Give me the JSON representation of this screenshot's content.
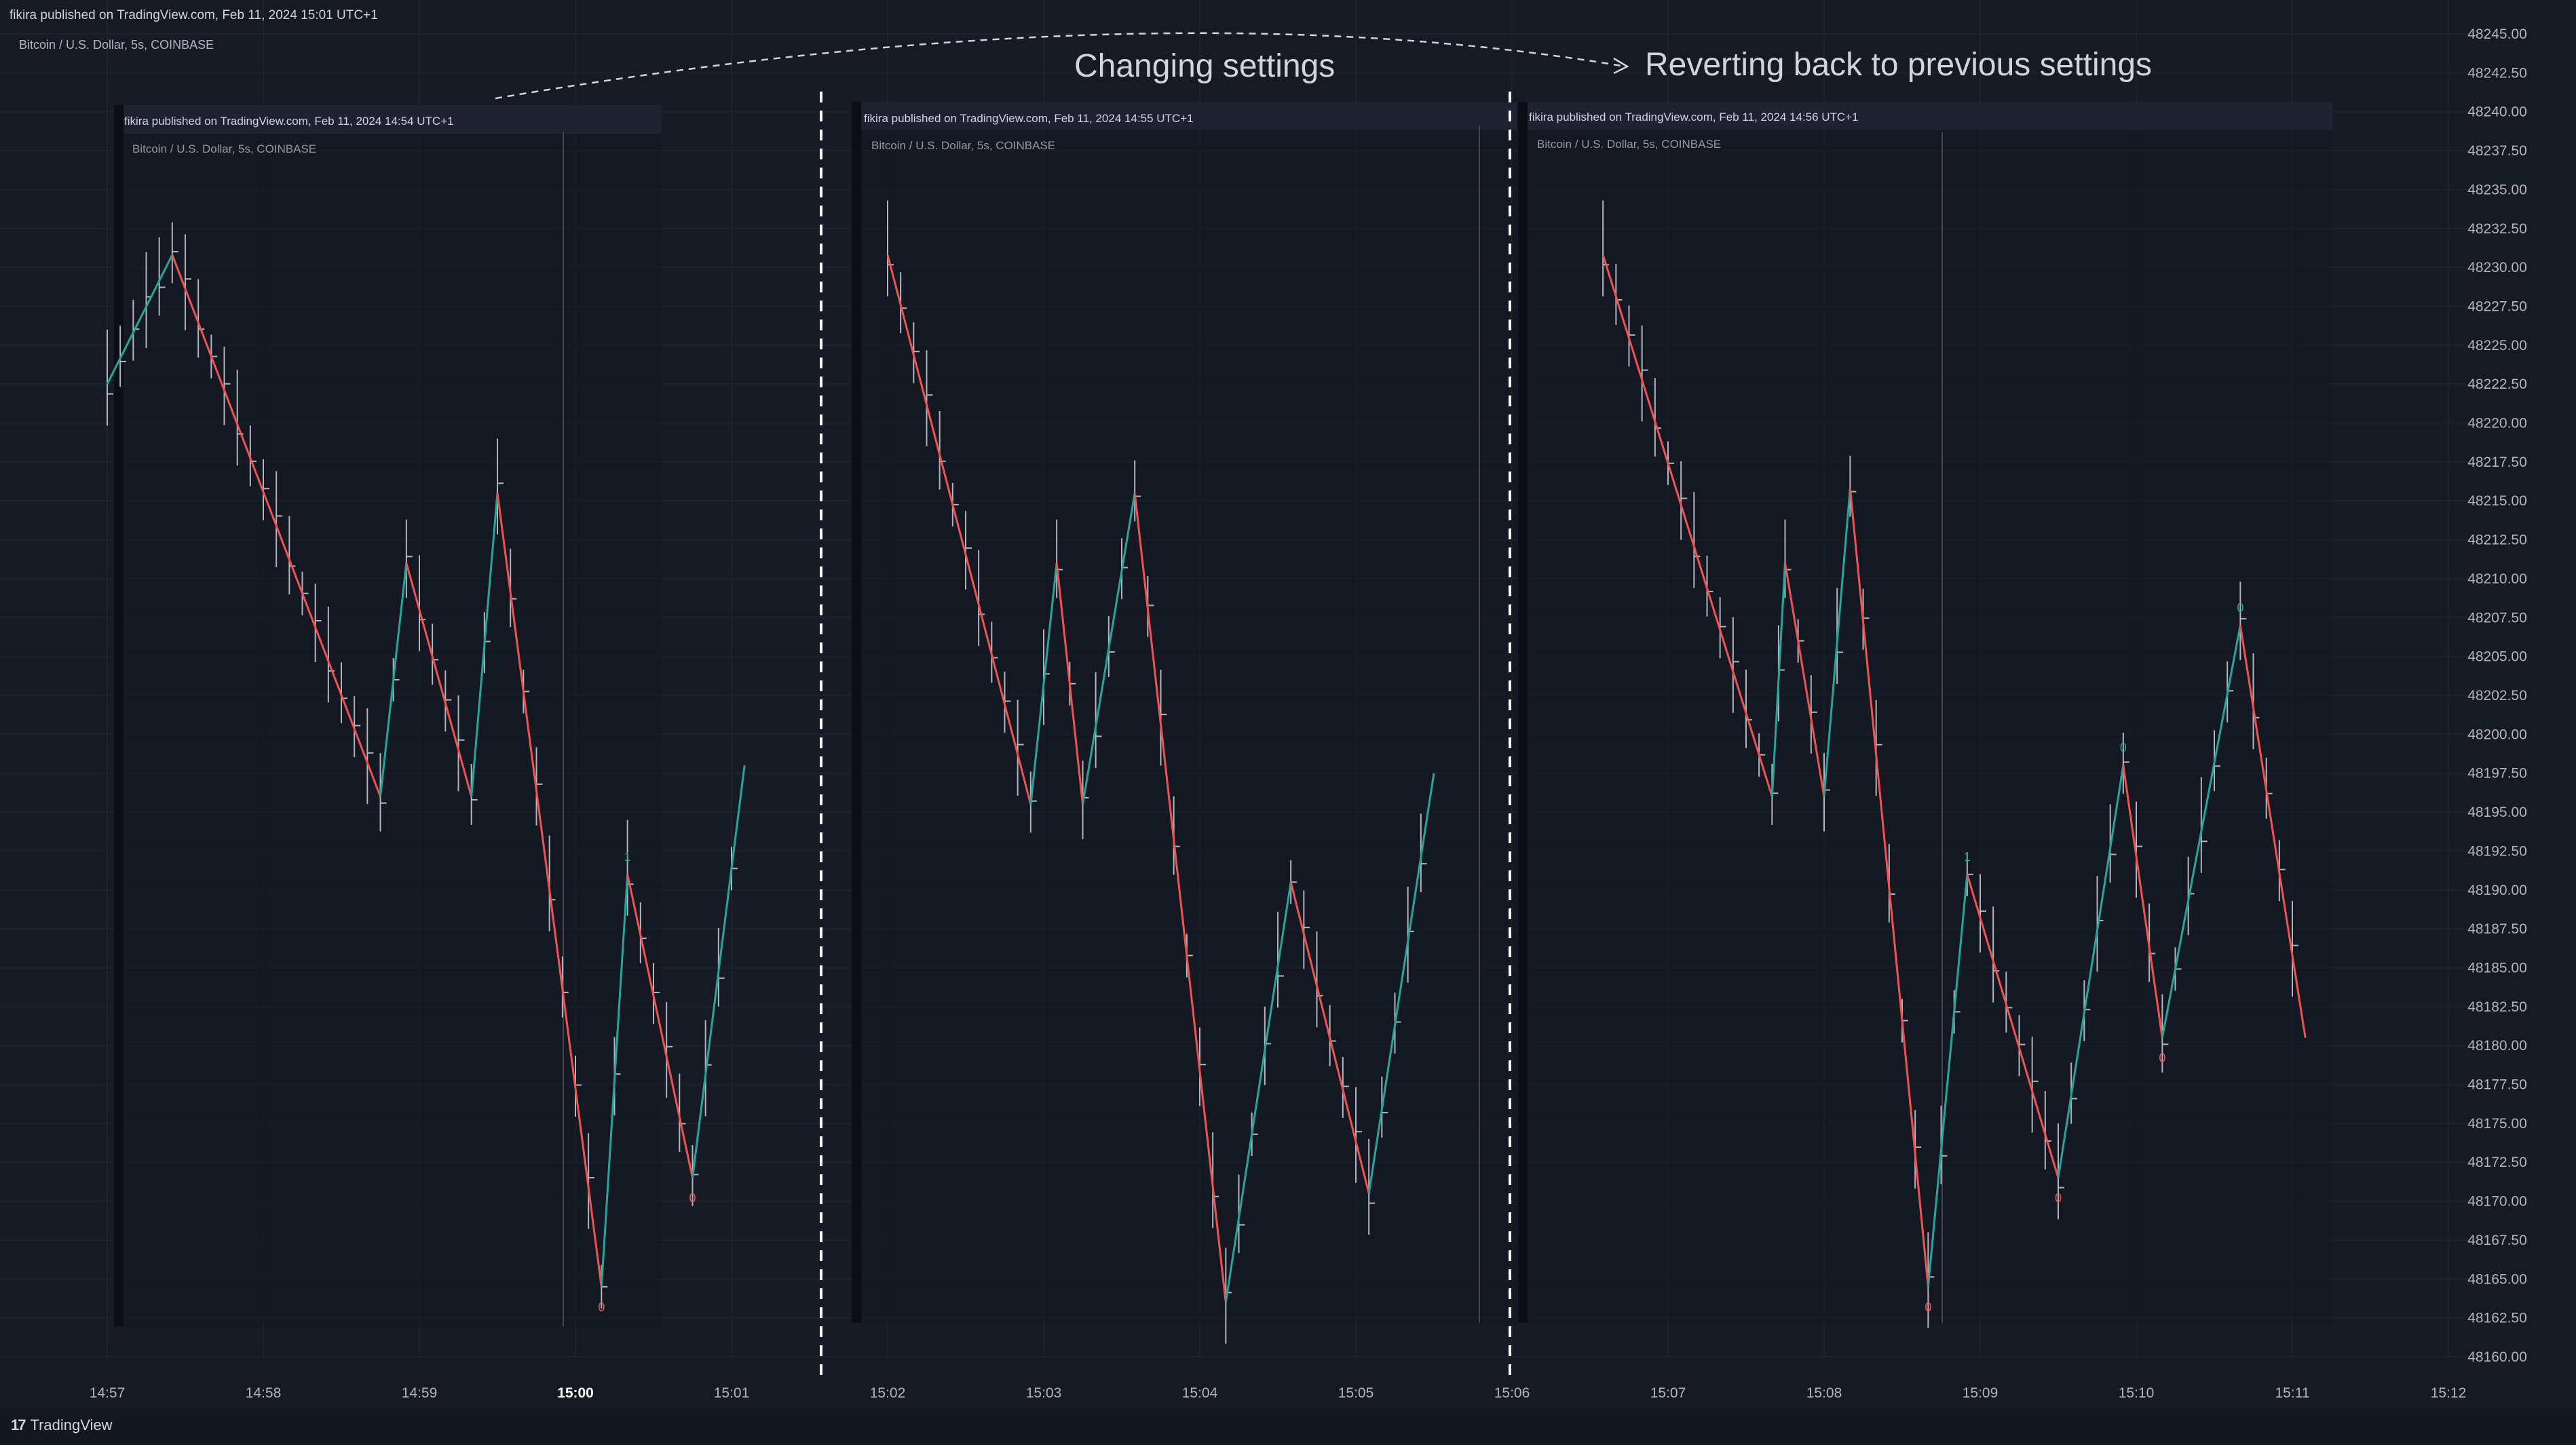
{
  "header": {
    "publisher": "fikira published on TradingView.com, Feb 11, 2024 15:01 UTC+1",
    "symbol": "Bitcoin / U.S. Dollar, 5s, COINBASE"
  },
  "annotations": {
    "changing": "Changing settings",
    "reverting": "Reverting back to previous settings"
  },
  "panels": [
    {
      "publisher": "fikira published on TradingView.com, Feb 11, 2024 14:54 UTC+1",
      "symbol": "Bitcoin / U.S. Dollar, 5s, COINBASE"
    },
    {
      "publisher": "fikira published on TradingView.com, Feb 11, 2024 14:55 UTC+1",
      "symbol": "Bitcoin / U.S. Dollar, 5s, COINBASE"
    },
    {
      "publisher": "fikira published on TradingView.com, Feb 11, 2024 14:56 UTC+1",
      "symbol": "Bitcoin / U.S. Dollar, 5s, COINBASE"
    }
  ],
  "footer": {
    "brand": "TradingView",
    "brand_mark": "17"
  },
  "colors": {
    "background": "#161a25",
    "up": "#26a69a",
    "down": "#ef5350",
    "wick": "#b2b5be",
    "grid": "#1e222d"
  },
  "chart_data": {
    "type": "line",
    "ylim": [
      48160.0,
      48245.0
    ],
    "y_ticks": [
      "48245.00",
      "48242.50",
      "48240.00",
      "48237.50",
      "48235.00",
      "48232.50",
      "48230.00",
      "48227.50",
      "48225.00",
      "48222.50",
      "48220.00",
      "48217.50",
      "48215.00",
      "48212.50",
      "48210.00",
      "48207.50",
      "48205.00",
      "48202.50",
      "48200.00",
      "48197.50",
      "48195.00",
      "48192.50",
      "48190.00",
      "48187.50",
      "48185.00",
      "48182.50",
      "48180.00",
      "48177.50",
      "48175.00",
      "48172.50",
      "48170.00",
      "48167.50",
      "48165.00",
      "48162.50",
      "48160.00"
    ],
    "x_ticks": [
      "14:57",
      "14:58",
      "14:59",
      "15:00",
      "15:01",
      "15:02",
      "15:03",
      "15:04",
      "15:05",
      "15:06",
      "15:07",
      "15:08",
      "15:09",
      "15:10",
      "15:11",
      "15:12"
    ],
    "x_ticks_bold": [
      "15:00"
    ],
    "zigzag": [
      {
        "panel": 0,
        "points": [
          [
            "14:57:00",
            48222.5
          ],
          [
            "14:57:25",
            48230.8
          ],
          [
            "14:58:45",
            48196.0
          ],
          [
            "14:58:55",
            48211.0
          ],
          [
            "14:59:20",
            48196.0
          ],
          [
            "14:59:30",
            48215.5
          ],
          [
            "15:00:10",
            48164.5
          ],
          [
            "15:00:20",
            48191.0
          ],
          [
            "15:00:45",
            48171.5
          ],
          [
            "15:01:05",
            48198.0
          ]
        ],
        "labels": [
          [
            "15:00:20",
            "1",
            "up"
          ],
          [
            "15:00:45",
            "0",
            "down"
          ],
          [
            "15:00:10",
            "0",
            "down"
          ]
        ]
      },
      {
        "panel": 1,
        "points": [
          [
            "15:02:00",
            48230.8
          ],
          [
            "15:02:55",
            48195.5
          ],
          [
            "15:03:05",
            48211.0
          ],
          [
            "15:03:15",
            48195.5
          ],
          [
            "15:03:35",
            48215.5
          ],
          [
            "15:04:10",
            48163.5
          ],
          [
            "15:04:35",
            48190.5
          ],
          [
            "15:05:05",
            48170.5
          ],
          [
            "15:05:30",
            48197.5
          ]
        ],
        "labels": []
      },
      {
        "panel": 2,
        "points": [
          [
            "15:06:35",
            48230.8
          ],
          [
            "15:07:40",
            48196.0
          ],
          [
            "15:07:45",
            48211.0
          ],
          [
            "15:08:00",
            48196.0
          ],
          [
            "15:08:10",
            48215.8
          ],
          [
            "15:08:40",
            48164.5
          ],
          [
            "15:08:55",
            48191.0
          ],
          [
            "15:09:30",
            48171.5
          ],
          [
            "15:09:55",
            48198.0
          ],
          [
            "15:10:10",
            48180.5
          ],
          [
            "15:10:40",
            48207.0
          ],
          [
            "15:11:05",
            48180.5
          ]
        ],
        "labels": [
          [
            "15:08:55",
            "1",
            "up"
          ],
          [
            "15:09:30",
            "0",
            "down"
          ],
          [
            "15:08:40",
            "0",
            "down"
          ],
          [
            "15:09:55",
            "0",
            "up"
          ],
          [
            "15:10:10",
            "0",
            "down"
          ],
          [
            "15:10:40",
            "0",
            "up"
          ]
        ]
      }
    ]
  }
}
